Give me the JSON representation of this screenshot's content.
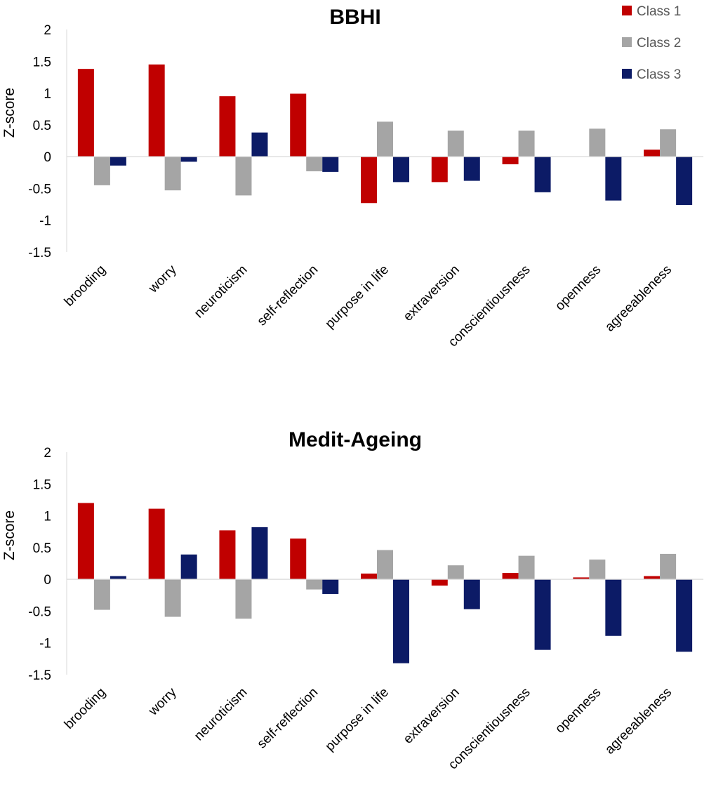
{
  "legend": {
    "items": [
      {
        "name": "Class 1",
        "color": "#C00000"
      },
      {
        "name": "Class 2",
        "color": "#A5A5A5"
      },
      {
        "name": "Class 3",
        "color": "#0C1B66"
      }
    ]
  },
  "chart_data": [
    {
      "type": "bar",
      "title": "BBHI",
      "xlabel": "",
      "ylabel": "Z-score",
      "ylim": [
        -1.5,
        2
      ],
      "yticks": [
        2,
        1.5,
        1,
        0.5,
        0,
        -0.5,
        -1,
        -1.5
      ],
      "ytick_labels": [
        "2",
        "1.5",
        "1",
        "0.5",
        "0",
        "-0.5",
        "-1",
        "-1.5"
      ],
      "categories": [
        "brooding",
        "worry",
        "neuroticism",
        "self-reflection",
        "purpose in life",
        "extraversion",
        "conscientiousness",
        "openness",
        "agreeableness"
      ],
      "series": [
        {
          "name": "Class 1",
          "values": [
            1.38,
            1.45,
            0.95,
            0.99,
            -0.73,
            -0.4,
            -0.12,
            0.0,
            0.11
          ]
        },
        {
          "name": "Class 2",
          "values": [
            -0.45,
            -0.53,
            -0.61,
            -0.23,
            0.55,
            0.41,
            0.41,
            0.44,
            0.43
          ]
        },
        {
          "name": "Class 3",
          "values": [
            -0.14,
            -0.08,
            0.38,
            -0.24,
            -0.4,
            -0.38,
            -0.56,
            -0.69,
            -0.76
          ]
        }
      ]
    },
    {
      "type": "bar",
      "title": "Medit-Ageing",
      "xlabel": "",
      "ylabel": "Z-score",
      "ylim": [
        -1.5,
        2
      ],
      "yticks": [
        2,
        1.5,
        1,
        0.5,
        0,
        -0.5,
        -1,
        -1.5
      ],
      "ytick_labels": [
        "2",
        "1.5",
        "1",
        "0.5",
        "0",
        "-0.5",
        "-1",
        "-1.5"
      ],
      "categories": [
        "brooding",
        "worry",
        "neuroticism",
        "self-reflection",
        "purpose in life",
        "extraversion",
        "conscientiousness",
        "openness",
        "agreeableness"
      ],
      "series": [
        {
          "name": "Class 1",
          "values": [
            1.2,
            1.11,
            0.77,
            0.64,
            0.09,
            -0.1,
            0.1,
            0.03,
            0.05
          ]
        },
        {
          "name": "Class 2",
          "values": [
            -0.48,
            -0.59,
            -0.62,
            -0.16,
            0.46,
            0.22,
            0.37,
            0.31,
            0.4
          ]
        },
        {
          "name": "Class 3",
          "values": [
            0.05,
            0.39,
            0.82,
            -0.23,
            -1.32,
            -0.47,
            -1.11,
            -0.89,
            -1.14
          ]
        }
      ]
    }
  ]
}
